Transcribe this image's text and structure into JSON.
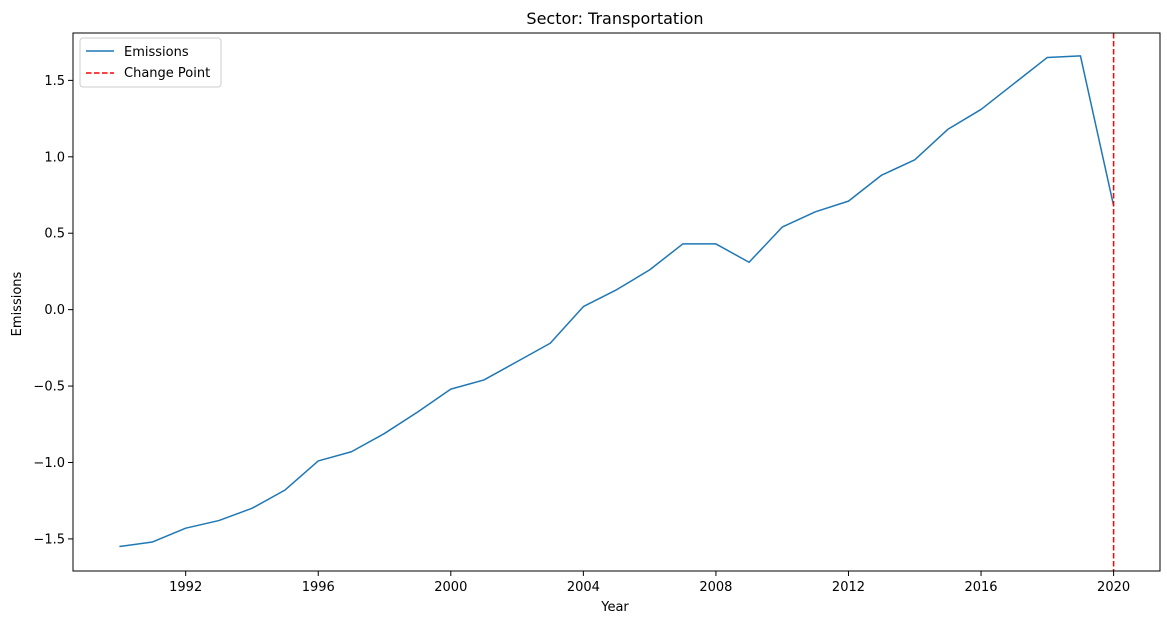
{
  "chart_data": {
    "type": "line",
    "title": "Sector: Transportation",
    "xlabel": "Year",
    "ylabel": "Emissions",
    "xlim": [
      1988.6,
      2021.4
    ],
    "ylim": [
      -1.71,
      1.81
    ],
    "xticks": [
      1992,
      1996,
      2000,
      2004,
      2008,
      2012,
      2016,
      2020
    ],
    "yticks": [
      -1.5,
      -1.0,
      -0.5,
      0.0,
      0.5,
      1.0,
      1.5
    ],
    "ytick_labels": [
      "−1.5",
      "−1.0",
      "−0.5",
      "0.0",
      "0.5",
      "1.0",
      "1.5"
    ],
    "grid": false,
    "legend_position": "top-left",
    "series": [
      {
        "name": "Emissions",
        "color": "#1f77b4",
        "x": [
          1990,
          1991,
          1992,
          1993,
          1994,
          1995,
          1996,
          1997,
          1998,
          1999,
          2000,
          2001,
          2002,
          2003,
          2004,
          2005,
          2006,
          2007,
          2008,
          2009,
          2010,
          2011,
          2012,
          2013,
          2014,
          2015,
          2016,
          2017,
          2018,
          2019,
          2020
        ],
        "y": [
          -1.55,
          -1.52,
          -1.43,
          -1.38,
          -1.3,
          -1.18,
          -0.99,
          -0.93,
          -0.81,
          -0.67,
          -0.52,
          -0.46,
          -0.34,
          -0.22,
          0.02,
          0.13,
          0.26,
          0.43,
          0.43,
          0.31,
          0.54,
          0.64,
          0.71,
          0.88,
          0.98,
          1.18,
          1.31,
          1.48,
          1.65,
          1.66,
          0.68
        ]
      }
    ],
    "vlines": [
      {
        "name": "Change Point",
        "x": 2020,
        "color": "#ff0000",
        "style": "dashed"
      }
    ]
  }
}
